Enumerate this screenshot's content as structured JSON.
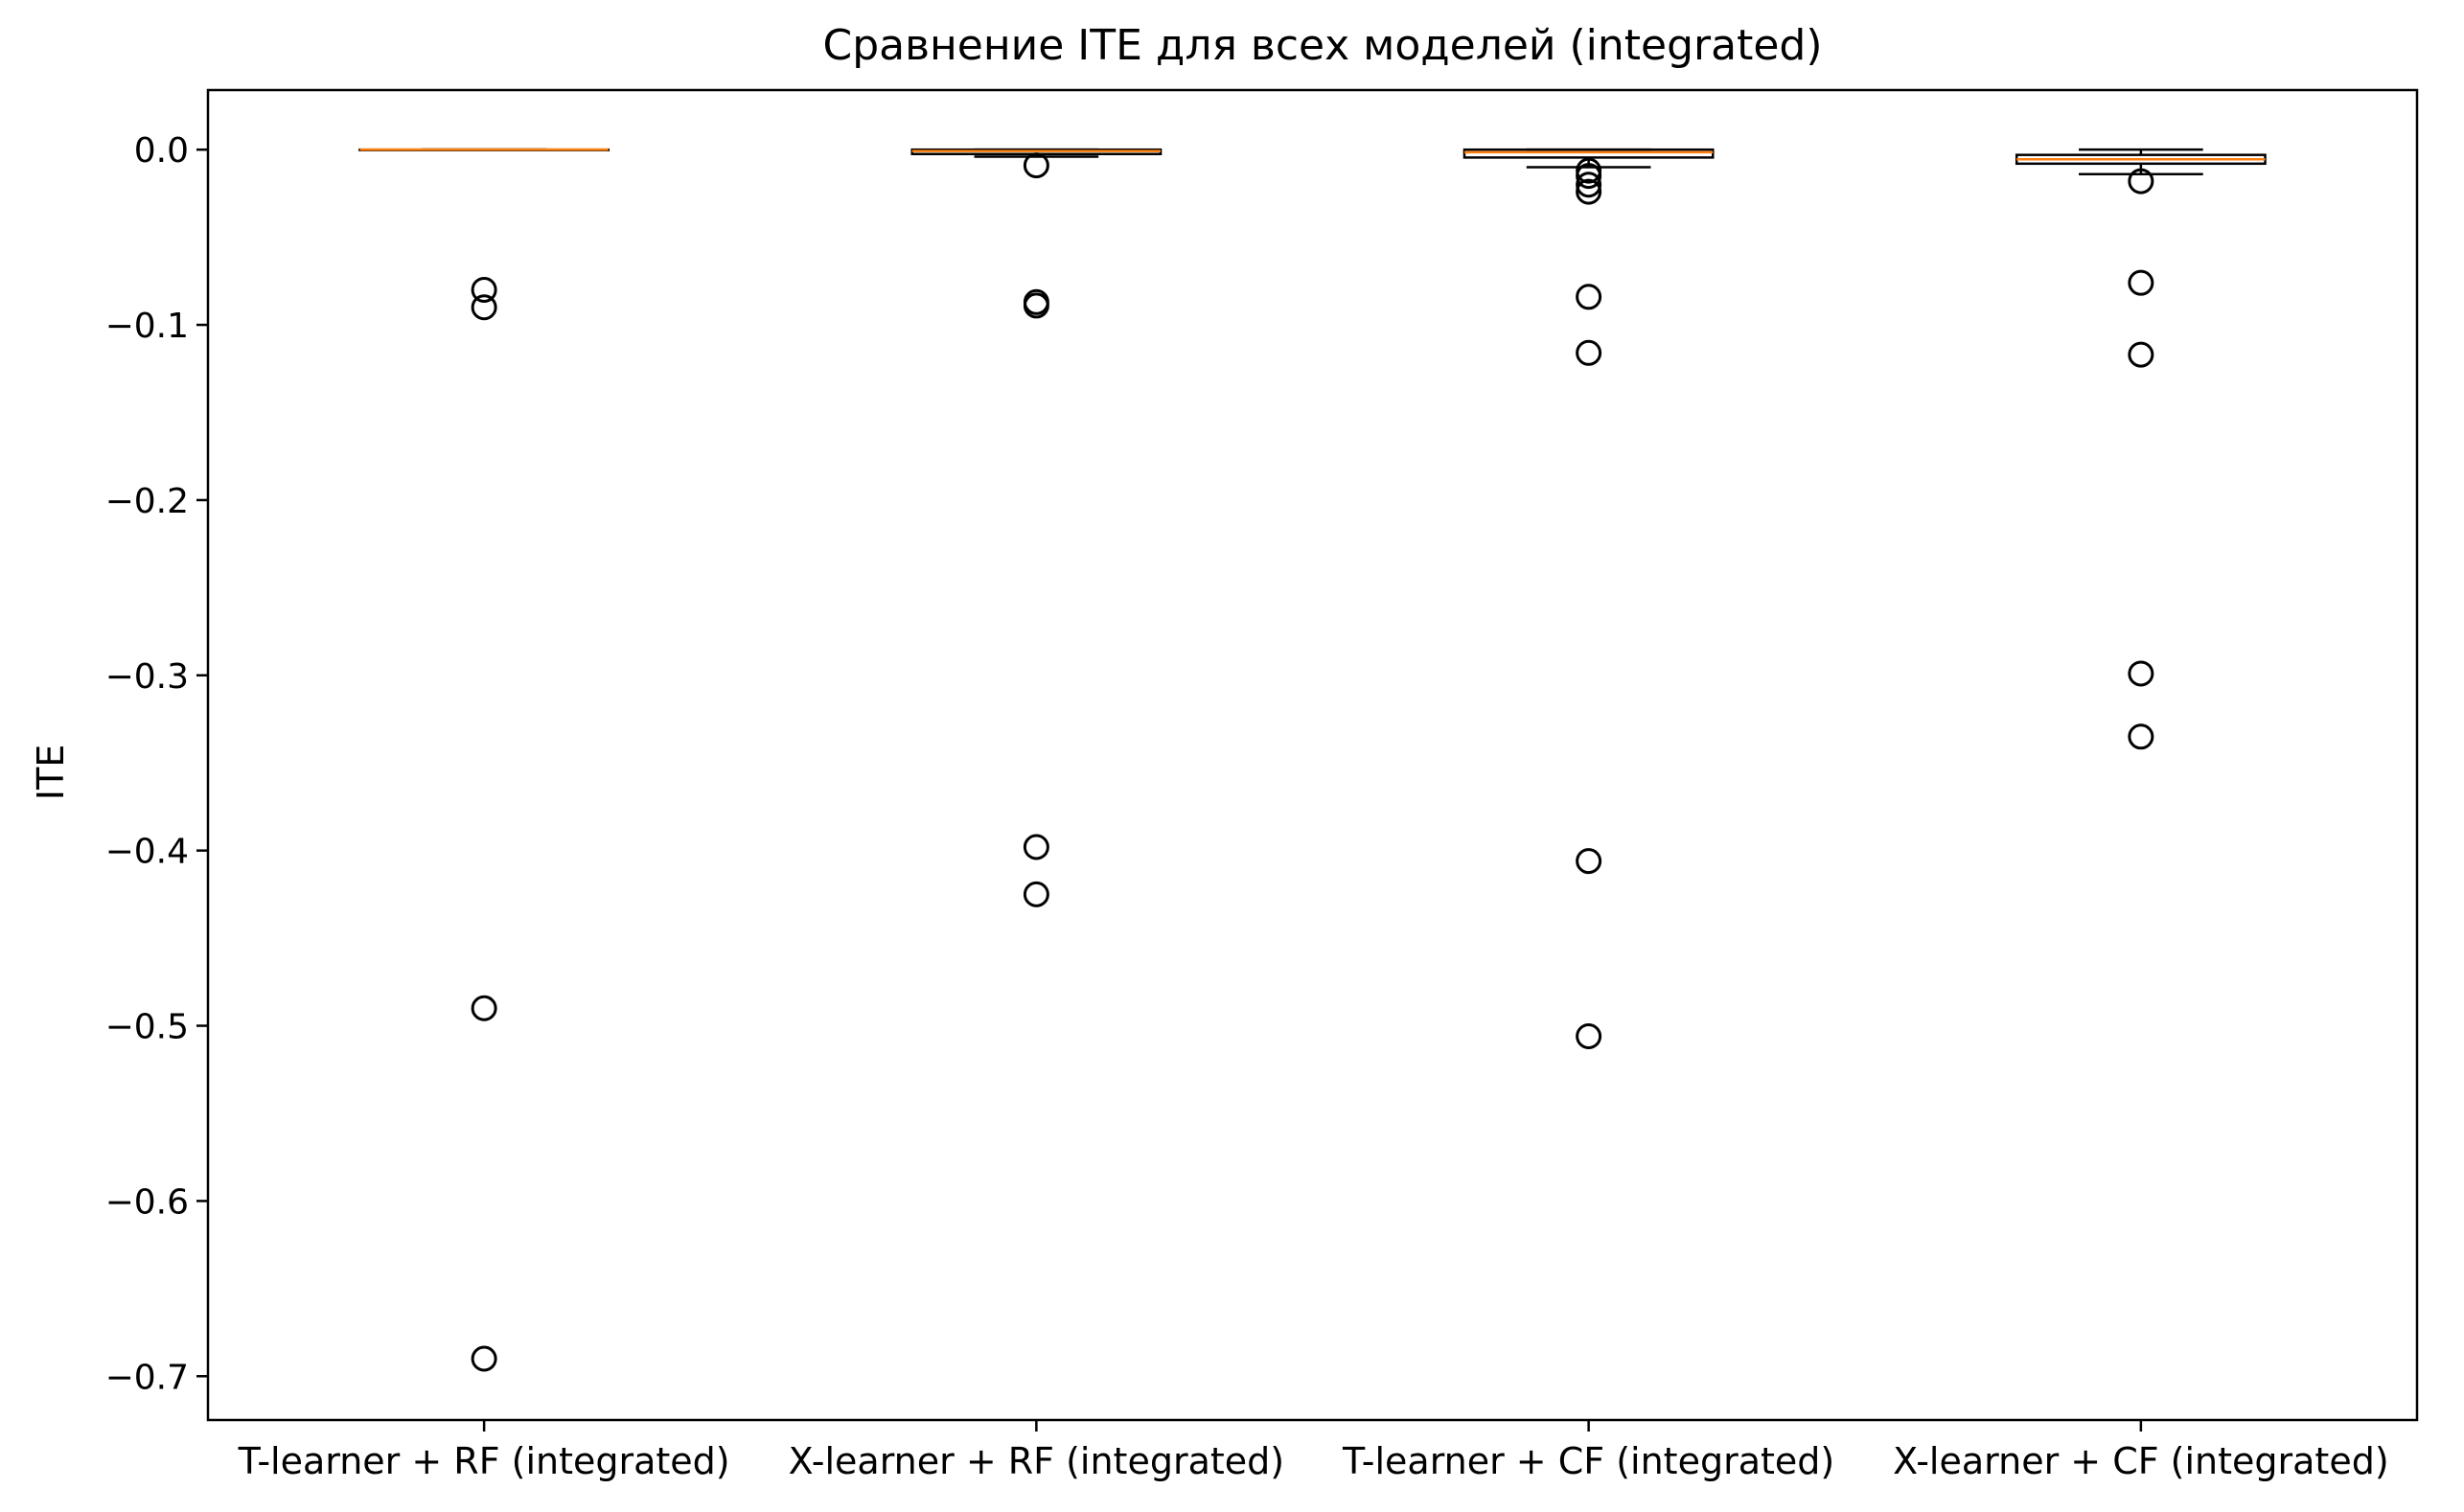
{
  "chart_data": {
    "type": "box",
    "title": "Сравнение ITE для всех моделей  (integrated)",
    "xlabel": "",
    "ylabel": "ITE",
    "ylim": [
      -0.725,
      0.034
    ],
    "yticks": [
      0.0,
      -0.1,
      -0.2,
      -0.3,
      -0.4,
      -0.5,
      -0.6,
      -0.7
    ],
    "ytick_labels": [
      "0.0",
      "−0.1",
      "−0.2",
      "−0.3",
      "−0.4",
      "−0.5",
      "−0.6",
      "−0.7"
    ],
    "grid": false,
    "colors": {
      "median": "#ff7f0e",
      "box": "#000000",
      "outlier": "#000000",
      "background": "#ffffff"
    },
    "categories": [
      "T-learner + RF (integrated)",
      "X-learner + RF (integrated)",
      "T-learner + CF (integrated)",
      "X-learner + CF (integrated)"
    ],
    "series": [
      {
        "q1": 0.0,
        "median": 0.0,
        "q3": 0.0,
        "whisker_low": 0.0,
        "whisker_high": 0.0,
        "outliers": [
          -0.08,
          -0.09,
          -0.49,
          -0.69
        ]
      },
      {
        "q1": -0.0025,
        "median": -0.0008,
        "q3": 0.0,
        "whisker_low": -0.004,
        "whisker_high": 0.0,
        "outliers": [
          -0.009,
          -0.087,
          -0.089,
          -0.398,
          -0.425
        ]
      },
      {
        "q1": -0.0045,
        "median": -0.0015,
        "q3": 0.0,
        "whisker_low": -0.01,
        "whisker_high": 0.0,
        "outliers": [
          -0.012,
          -0.015,
          -0.02,
          -0.024,
          -0.084,
          -0.116,
          -0.406,
          -0.506
        ]
      },
      {
        "q1": -0.008,
        "median": -0.0055,
        "q3": -0.003,
        "whisker_low": -0.014,
        "whisker_high": 0.0,
        "outliers": [
          -0.018,
          -0.076,
          -0.117,
          -0.299,
          -0.335
        ]
      }
    ]
  }
}
